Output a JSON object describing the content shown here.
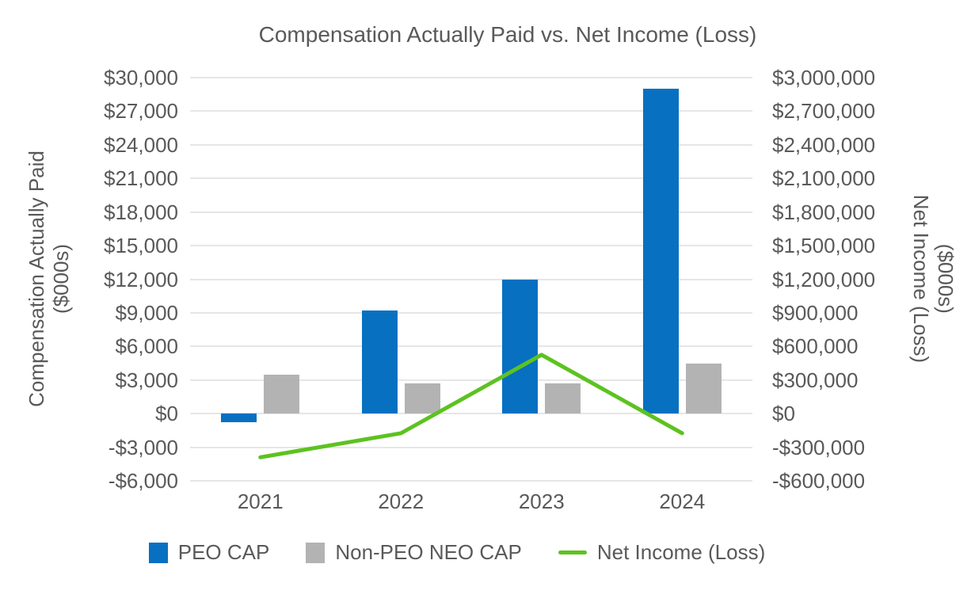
{
  "title": "Compensation Actually Paid vs. Net Income (Loss)",
  "colors": {
    "peo_blue": "#0770C1",
    "neo_gray": "#B3B3B3",
    "net_income_green": "#5DC220",
    "text_gray": "#595959",
    "gridline_gray": "#E6E6E6"
  },
  "left_axis": {
    "title_line1": "Compensation Actually Paid",
    "title_line2": "($000s)",
    "tick_labels": [
      "$30,000",
      "$27,000",
      "$24,000",
      "$21,000",
      "$18,000",
      "$15,000",
      "$12,000",
      "$9,000",
      "$6,000",
      "$3,000",
      "$0",
      "-$3,000",
      "-$6,000"
    ]
  },
  "right_axis": {
    "title_line1": "Net Income (Loss)",
    "title_line2": "($000s)",
    "tick_labels": [
      "$3,000,000",
      "$2,700,000",
      "$2,400,000",
      "$2,100,000",
      "$1,800,000",
      "$1,500,000",
      "$1,200,000",
      "$900,000",
      "$600,000",
      "$300,000",
      "$0",
      "-$300,000",
      "-$600,000"
    ]
  },
  "x_axis": {
    "labels": [
      "2021",
      "2022",
      "2023",
      "2024"
    ]
  },
  "legend": {
    "items": [
      {
        "label": "PEO CAP",
        "swatch": "square",
        "color": "#0770C1"
      },
      {
        "label": "Non-PEO NEO CAP",
        "swatch": "square",
        "color": "#B3B3B3"
      },
      {
        "label": "Net Income (Loss)",
        "swatch": "line",
        "color": "#5DC220"
      }
    ]
  },
  "chart_data": {
    "type": "combo (bar + line, dual axis)",
    "title": "Compensation Actually Paid vs. Net Income (Loss)",
    "categories": [
      "2021",
      "2022",
      "2023",
      "2024"
    ],
    "series": [
      {
        "name": "PEO CAP",
        "type": "bar",
        "axis": "left",
        "color": "#0770C1",
        "values": [
          -800,
          9200,
          12000,
          29000
        ]
      },
      {
        "name": "Non-PEO NEO CAP",
        "type": "bar",
        "axis": "left",
        "color": "#B3B3B3",
        "values": [
          3500,
          2700,
          2700,
          4500
        ]
      },
      {
        "name": "Net Income (Loss)",
        "type": "line",
        "axis": "right",
        "color": "#5DC220",
        "values": [
          -390000,
          -175000,
          525000,
          -175000
        ]
      }
    ],
    "left_axis": {
      "label": "Compensation Actually Paid ($000s)",
      "min": -6000,
      "max": 30000,
      "step": 3000
    },
    "right_axis": {
      "label": "Net Income (Loss) ($000s)",
      "min": -600000,
      "max": 3000000,
      "step": 300000
    },
    "grid": "horizontal gridlines on",
    "legend_position": "bottom"
  }
}
